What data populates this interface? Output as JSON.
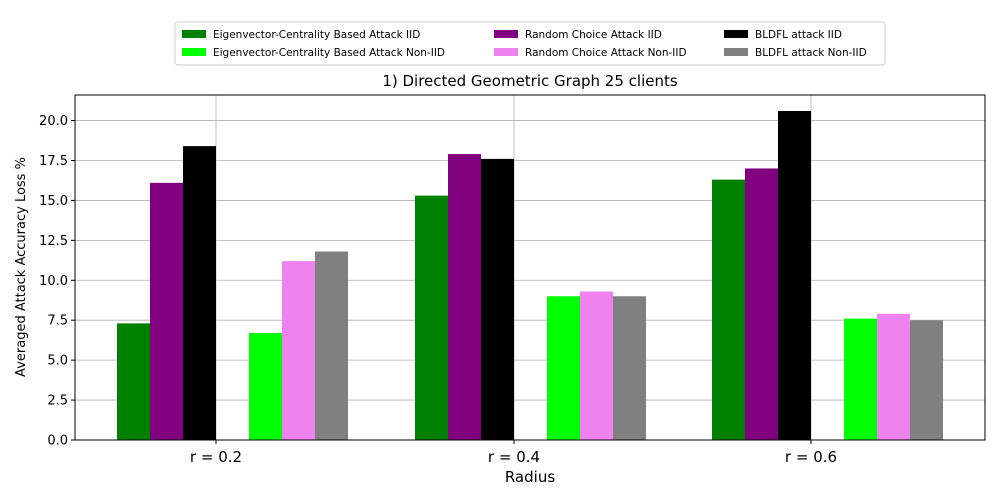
{
  "chart_data": {
    "type": "bar",
    "title": "1) Directed Geometric Graph 25 clients",
    "xlabel": "Radius",
    "ylabel": "Averaged Attack Accuracy Loss %",
    "categories": [
      "r = 0.2",
      "r = 0.4",
      "r = 0.6"
    ],
    "ylim": [
      0,
      21.6
    ],
    "yticks": [
      "0.0",
      "2.5",
      "5.0",
      "7.5",
      "10.0",
      "12.5",
      "15.0",
      "17.5",
      "20.0"
    ],
    "grid": true,
    "legend_position": "top-center",
    "series": [
      {
        "name": "Eigenvector-Centrality Based Attack IID",
        "color": "#008000",
        "group": "IID",
        "values": [
          7.3,
          15.3,
          16.3
        ]
      },
      {
        "name": "Random Choice Attack IID",
        "color": "#800080",
        "group": "IID",
        "values": [
          16.1,
          17.9,
          17.0
        ]
      },
      {
        "name": "BLDFL attack IID",
        "color": "#000000",
        "group": "IID",
        "values": [
          18.4,
          17.6,
          20.6
        ]
      },
      {
        "name": "Eigenvector-Centrality Based Attack Non-IID",
        "color": "#00ff00",
        "group": "Non-IID",
        "values": [
          6.7,
          9.0,
          7.6
        ]
      },
      {
        "name": "Random Choice Attack Non-IID",
        "color": "#ee82ee",
        "group": "Non-IID",
        "values": [
          11.2,
          9.3,
          7.9
        ]
      },
      {
        "name": "BLDFL attack Non-IID",
        "color": "#808080",
        "group": "Non-IID",
        "values": [
          11.8,
          9.0,
          7.5
        ]
      }
    ]
  }
}
